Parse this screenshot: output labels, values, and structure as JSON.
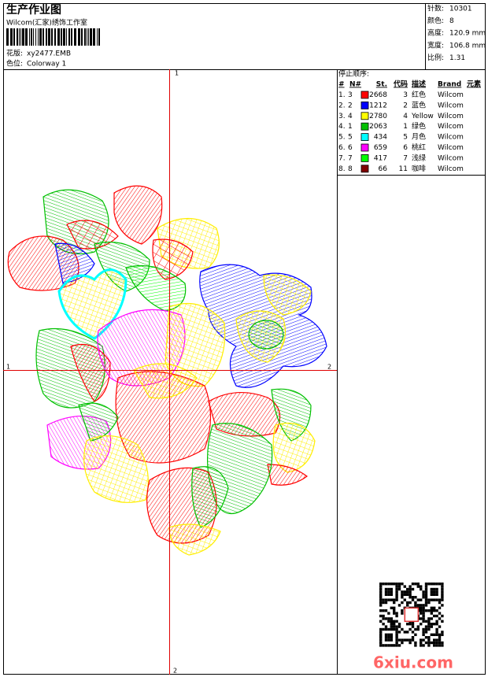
{
  "header": {
    "title": "生产作业图",
    "studio": "Wilcom(汇家)绣饰工作室",
    "design": {
      "label": "花版:",
      "value": "xy2477.EMB"
    },
    "colorway": {
      "label": "色位:",
      "value": "Colorway 1"
    }
  },
  "info": [
    {
      "label": "针数:",
      "value": 10301
    },
    {
      "label": "颜色:",
      "value": 8
    },
    {
      "label": "高度:",
      "value": "120.9 mm"
    },
    {
      "label": "宽度:",
      "value": "106.8 mm"
    },
    {
      "label": "比例:",
      "value": 1.31
    }
  ],
  "stop_sequence": {
    "title": "停止顺序:",
    "columns": [
      "#",
      "N#",
      "St.",
      "代码",
      "描述",
      "Brand",
      "元素"
    ],
    "rows": [
      {
        "index": "1.",
        "needle": 3,
        "color": "#ff0000",
        "stitches": 2668,
        "code": 3,
        "description": "红色",
        "brand": "Wilcom"
      },
      {
        "index": "2.",
        "needle": 2,
        "color": "#0000ff",
        "stitches": 1212,
        "code": 2,
        "description": "蓝色",
        "brand": "Wilcom"
      },
      {
        "index": "3.",
        "needle": 4,
        "color": "#ffff00",
        "stitches": 2780,
        "code": 4,
        "description": "Yellow",
        "brand": "Wilcom"
      },
      {
        "index": "4.",
        "needle": 1,
        "color": "#00c000",
        "stitches": 2063,
        "code": 1,
        "description": "绿色",
        "brand": "Wilcom"
      },
      {
        "index": "5.",
        "needle": 5,
        "color": "#00ffff",
        "stitches": 434,
        "code": 5,
        "description": "月色",
        "brand": "Wilcom"
      },
      {
        "index": "6.",
        "needle": 6,
        "color": "#ff00ff",
        "stitches": 659,
        "code": 6,
        "description": "桃红",
        "brand": "Wilcom"
      },
      {
        "index": "7.",
        "needle": 7,
        "color": "#00ff00",
        "stitches": 417,
        "code": 7,
        "description": "浅绿",
        "brand": "Wilcom"
      },
      {
        "index": "8.",
        "needle": 8,
        "color": "#800000",
        "stitches": 66,
        "code": 11,
        "description": "咖啡",
        "brand": "Wilcom"
      }
    ]
  },
  "axes": {
    "top": "1",
    "left": "1",
    "right": "2",
    "bottom": "2"
  },
  "watermark": "6xiu.com"
}
